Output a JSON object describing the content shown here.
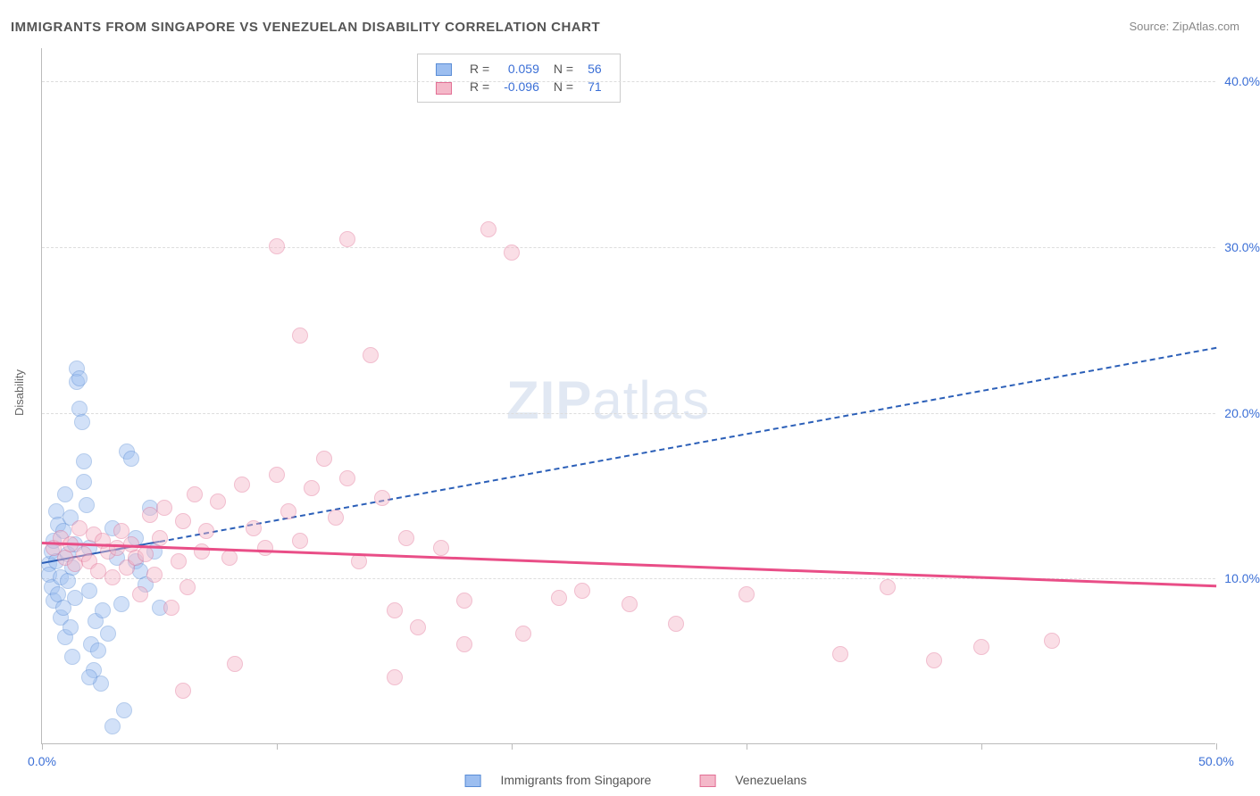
{
  "title": "IMMIGRANTS FROM SINGAPORE VS VENEZUELAN DISABILITY CORRELATION CHART",
  "source": "Source: ZipAtlas.com",
  "y_axis_title": "Disability",
  "watermark": {
    "bold": "ZIP",
    "rest": "atlas"
  },
  "chart": {
    "type": "scatter",
    "xlim": [
      0,
      50
    ],
    "ylim": [
      0,
      42
    ],
    "x_ticks": [
      0,
      10,
      20,
      30,
      40,
      50
    ],
    "x_tick_labels": {
      "0": "0.0%",
      "50": "50.0%"
    },
    "y_ticks": [
      10,
      20,
      30,
      40
    ],
    "y_tick_labels": {
      "10": "10.0%",
      "20": "20.0%",
      "30": "30.0%",
      "40": "40.0%"
    },
    "background_color": "#ffffff",
    "grid_color": "#dddddd",
    "axis_color": "#bbbbbb",
    "tick_label_color": "#3b6fd6",
    "marker_radius": 9,
    "marker_opacity": 0.45,
    "series": [
      {
        "id": "singapore",
        "label": "Immigrants from Singapore",
        "fill": "#9cbef0",
        "stroke": "#5a8dd6",
        "R": "0.059",
        "N": "56",
        "trend": {
          "x1": 0,
          "y1": 11.0,
          "x2": 50,
          "y2": 24.0,
          "color": "#2b5fb8",
          "width": 2,
          "dashed": true,
          "solid_until_x": 5
        },
        "points": [
          [
            0.3,
            10.8
          ],
          [
            0.3,
            10.2
          ],
          [
            0.4,
            11.6
          ],
          [
            0.4,
            9.4
          ],
          [
            0.5,
            12.2
          ],
          [
            0.5,
            8.6
          ],
          [
            0.6,
            14.0
          ],
          [
            0.6,
            11.0
          ],
          [
            0.7,
            13.2
          ],
          [
            0.7,
            9.0
          ],
          [
            0.8,
            10.0
          ],
          [
            0.8,
            7.6
          ],
          [
            0.9,
            12.8
          ],
          [
            0.9,
            8.2
          ],
          [
            1.0,
            15.0
          ],
          [
            1.0,
            6.4
          ],
          [
            1.1,
            11.4
          ],
          [
            1.1,
            9.8
          ],
          [
            1.2,
            13.6
          ],
          [
            1.2,
            7.0
          ],
          [
            1.3,
            10.6
          ],
          [
            1.3,
            5.2
          ],
          [
            1.4,
            12.0
          ],
          [
            1.4,
            8.8
          ],
          [
            1.5,
            22.6
          ],
          [
            1.5,
            21.8
          ],
          [
            1.6,
            22.0
          ],
          [
            1.6,
            20.2
          ],
          [
            1.7,
            19.4
          ],
          [
            1.8,
            17.0
          ],
          [
            1.8,
            15.8
          ],
          [
            1.9,
            14.4
          ],
          [
            2.0,
            11.8
          ],
          [
            2.0,
            9.2
          ],
          [
            2.1,
            6.0
          ],
          [
            2.2,
            4.4
          ],
          [
            2.3,
            7.4
          ],
          [
            2.4,
            5.6
          ],
          [
            2.5,
            3.6
          ],
          [
            2.6,
            8.0
          ],
          [
            2.8,
            6.6
          ],
          [
            3.0,
            13.0
          ],
          [
            3.2,
            11.2
          ],
          [
            3.4,
            8.4
          ],
          [
            3.5,
            2.0
          ],
          [
            3.6,
            17.6
          ],
          [
            3.8,
            17.2
          ],
          [
            4.0,
            11.0
          ],
          [
            4.0,
            12.4
          ],
          [
            4.2,
            10.4
          ],
          [
            4.4,
            9.6
          ],
          [
            4.6,
            14.2
          ],
          [
            4.8,
            11.6
          ],
          [
            5.0,
            8.2
          ],
          [
            3.0,
            1.0
          ],
          [
            2.0,
            4.0
          ]
        ]
      },
      {
        "id": "venezuelans",
        "label": "Venezuelans",
        "fill": "#f4b8c9",
        "stroke": "#e26f94",
        "R": "-0.096",
        "N": "71",
        "trend": {
          "x1": 0,
          "y1": 12.2,
          "x2": 50,
          "y2": 9.6,
          "color": "#e94e87",
          "width": 3,
          "dashed": false
        },
        "points": [
          [
            0.5,
            11.8
          ],
          [
            0.8,
            12.4
          ],
          [
            1.0,
            11.2
          ],
          [
            1.2,
            12.0
          ],
          [
            1.4,
            10.8
          ],
          [
            1.6,
            13.0
          ],
          [
            1.8,
            11.4
          ],
          [
            2.0,
            11.0
          ],
          [
            2.2,
            12.6
          ],
          [
            2.4,
            10.4
          ],
          [
            2.6,
            12.2
          ],
          [
            2.8,
            11.6
          ],
          [
            3.0,
            10.0
          ],
          [
            3.2,
            11.8
          ],
          [
            3.4,
            12.8
          ],
          [
            3.6,
            10.6
          ],
          [
            3.8,
            12.0
          ],
          [
            4.0,
            11.2
          ],
          [
            4.2,
            9.0
          ],
          [
            4.4,
            11.4
          ],
          [
            4.6,
            13.8
          ],
          [
            4.8,
            10.2
          ],
          [
            5.0,
            12.4
          ],
          [
            5.2,
            14.2
          ],
          [
            5.5,
            8.2
          ],
          [
            5.8,
            11.0
          ],
          [
            6.0,
            13.4
          ],
          [
            6.2,
            9.4
          ],
          [
            6.5,
            15.0
          ],
          [
            6.8,
            11.6
          ],
          [
            7.0,
            12.8
          ],
          [
            7.5,
            14.6
          ],
          [
            8.0,
            11.2
          ],
          [
            8.2,
            4.8
          ],
          [
            8.5,
            15.6
          ],
          [
            9.0,
            13.0
          ],
          [
            9.5,
            11.8
          ],
          [
            10.0,
            16.2
          ],
          [
            10.0,
            30.0
          ],
          [
            10.5,
            14.0
          ],
          [
            11.0,
            12.2
          ],
          [
            11.0,
            24.6
          ],
          [
            11.5,
            15.4
          ],
          [
            12.0,
            17.2
          ],
          [
            12.5,
            13.6
          ],
          [
            13.0,
            16.0
          ],
          [
            13.0,
            30.4
          ],
          [
            13.5,
            11.0
          ],
          [
            14.0,
            23.4
          ],
          [
            14.5,
            14.8
          ],
          [
            15.0,
            8.0
          ],
          [
            15.0,
            4.0
          ],
          [
            15.5,
            12.4
          ],
          [
            16.0,
            7.0
          ],
          [
            17.0,
            11.8
          ],
          [
            18.0,
            8.6
          ],
          [
            18.0,
            6.0
          ],
          [
            19.0,
            31.0
          ],
          [
            20.0,
            29.6
          ],
          [
            20.5,
            6.6
          ],
          [
            22.0,
            8.8
          ],
          [
            23.0,
            9.2
          ],
          [
            25.0,
            8.4
          ],
          [
            27.0,
            7.2
          ],
          [
            30.0,
            9.0
          ],
          [
            34.0,
            5.4
          ],
          [
            36.0,
            9.4
          ],
          [
            38.0,
            5.0
          ],
          [
            40.0,
            5.8
          ],
          [
            43.0,
            6.2
          ],
          [
            6.0,
            3.2
          ]
        ]
      }
    ]
  },
  "legend_top": {
    "R_label": "R =",
    "N_label": "N =",
    "text_color": "#555555",
    "value_color": "#3b6fd6"
  },
  "legend_bottom_labels": [
    "Immigrants from Singapore",
    "Venezuelans"
  ]
}
